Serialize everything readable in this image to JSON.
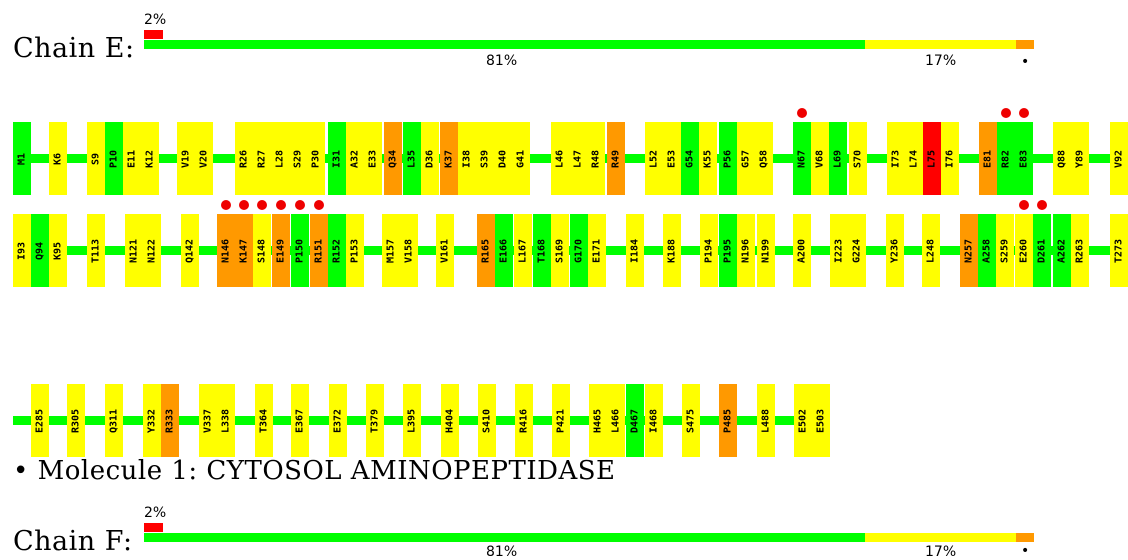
{
  "chain_e": {
    "label": "Chain E:",
    "top_pct": "2%",
    "pct_green": "81%",
    "pct_yellow": "17%",
    "dot": "•",
    "fractions": {
      "red": 0.02,
      "green": 0.81,
      "yellow": 0.17,
      "orange": 0.02
    }
  },
  "chain_f": {
    "label": "Chain F:",
    "top_pct": "2%",
    "pct_green": "81%",
    "pct_yellow": "17%",
    "dot": "•"
  },
  "molecule": {
    "text": "• Molecule 1: CYTOSOL AMINOPEPTIDASE"
  },
  "colors": {
    "green": "#00ff00",
    "yellow": "#ffff00",
    "orange": "#ff9900",
    "red": "#ff0000",
    "dot": "#e00000"
  },
  "rows": [
    {
      "residues": [
        {
          "label": "M1",
          "color": "green"
        },
        {
          "label": "K6",
          "color": "yellow"
        },
        {
          "label": "S9",
          "color": "yellow"
        },
        {
          "label": "P10",
          "color": "green"
        },
        {
          "label": "E11",
          "color": "yellow"
        },
        {
          "label": "K12",
          "color": "yellow"
        },
        {
          "label": "V19",
          "color": "yellow"
        },
        {
          "label": "V20",
          "color": "yellow"
        },
        {
          "label": "R26",
          "color": "yellow"
        },
        {
          "label": "R27",
          "color": "yellow"
        },
        {
          "label": "L28",
          "color": "yellow"
        },
        {
          "label": "S29",
          "color": "yellow"
        },
        {
          "label": "P30",
          "color": "yellow"
        },
        {
          "label": "I31",
          "color": "green"
        },
        {
          "label": "A32",
          "color": "yellow"
        },
        {
          "label": "E33",
          "color": "yellow"
        },
        {
          "label": "Q34",
          "color": "orange"
        },
        {
          "label": "L35",
          "color": "green"
        },
        {
          "label": "D36",
          "color": "yellow"
        },
        {
          "label": "K37",
          "color": "orange"
        },
        {
          "label": "I38",
          "color": "yellow"
        },
        {
          "label": "S39",
          "color": "yellow"
        },
        {
          "label": "D40",
          "color": "yellow"
        },
        {
          "label": "G41",
          "color": "yellow"
        },
        {
          "label": "L46",
          "color": "yellow"
        },
        {
          "label": "L47",
          "color": "yellow"
        },
        {
          "label": "R48",
          "color": "yellow"
        },
        {
          "label": "R49",
          "color": "orange"
        },
        {
          "label": "L52",
          "color": "yellow"
        },
        {
          "label": "E53",
          "color": "yellow"
        },
        {
          "label": "G54",
          "color": "green"
        },
        {
          "label": "K55",
          "color": "yellow"
        },
        {
          "label": "P56",
          "color": "green"
        },
        {
          "label": "G57",
          "color": "yellow"
        },
        {
          "label": "Q58",
          "color": "yellow"
        },
        {
          "label": "N67",
          "color": "green",
          "dot": true
        },
        {
          "label": "V68",
          "color": "yellow"
        },
        {
          "label": "L69",
          "color": "green"
        },
        {
          "label": "S70",
          "color": "yellow"
        },
        {
          "label": "I73",
          "color": "yellow"
        },
        {
          "label": "L74",
          "color": "yellow"
        },
        {
          "label": "L75",
          "color": "red"
        },
        {
          "label": "I76",
          "color": "yellow"
        },
        {
          "label": "E81",
          "color": "orange"
        },
        {
          "label": "R82",
          "color": "green",
          "dot": true
        },
        {
          "label": "E83",
          "color": "green",
          "dot": true
        },
        {
          "label": "Q88",
          "color": "yellow"
        },
        {
          "label": "Y89",
          "color": "yellow"
        },
        {
          "label": "V92",
          "color": "yellow"
        }
      ]
    },
    {
      "residues": [
        {
          "label": "I93",
          "color": "yellow"
        },
        {
          "label": "Q94",
          "color": "green"
        },
        {
          "label": "K95",
          "color": "yellow"
        },
        {
          "label": "T113",
          "color": "yellow"
        },
        {
          "label": "N121",
          "color": "yellow"
        },
        {
          "label": "N122",
          "color": "yellow"
        },
        {
          "label": "Q142",
          "color": "yellow"
        },
        {
          "label": "N146",
          "color": "orange",
          "dot": true
        },
        {
          "label": "K147",
          "color": "orange",
          "dot": true
        },
        {
          "label": "S148",
          "color": "yellow",
          "dot": true
        },
        {
          "label": "E149",
          "color": "orange",
          "dot": true
        },
        {
          "label": "P150",
          "color": "green",
          "dot": true
        },
        {
          "label": "R151",
          "color": "orange",
          "dot": true
        },
        {
          "label": "R152",
          "color": "green"
        },
        {
          "label": "P153",
          "color": "yellow"
        },
        {
          "label": "M157",
          "color": "yellow"
        },
        {
          "label": "V158",
          "color": "yellow"
        },
        {
          "label": "V161",
          "color": "yellow"
        },
        {
          "label": "R165",
          "color": "orange"
        },
        {
          "label": "E166",
          "color": "green"
        },
        {
          "label": "L167",
          "color": "yellow"
        },
        {
          "label": "T168",
          "color": "green"
        },
        {
          "label": "S169",
          "color": "yellow"
        },
        {
          "label": "G170",
          "color": "green"
        },
        {
          "label": "E171",
          "color": "yellow"
        },
        {
          "label": "I184",
          "color": "yellow"
        },
        {
          "label": "K188",
          "color": "yellow"
        },
        {
          "label": "P194",
          "color": "yellow"
        },
        {
          "label": "P195",
          "color": "green"
        },
        {
          "label": "N196",
          "color": "yellow"
        },
        {
          "label": "N199",
          "color": "yellow"
        },
        {
          "label": "A200",
          "color": "yellow"
        },
        {
          "label": "I223",
          "color": "yellow"
        },
        {
          "label": "G224",
          "color": "yellow"
        },
        {
          "label": "Y236",
          "color": "yellow"
        },
        {
          "label": "L248",
          "color": "yellow"
        },
        {
          "label": "N257",
          "color": "orange"
        },
        {
          "label": "A258",
          "color": "green"
        },
        {
          "label": "S259",
          "color": "yellow"
        },
        {
          "label": "E260",
          "color": "yellow",
          "dot": true
        },
        {
          "label": "D261",
          "color": "green",
          "dot": true
        },
        {
          "label": "A262",
          "color": "green"
        },
        {
          "label": "R263",
          "color": "yellow"
        },
        {
          "label": "T273",
          "color": "yellow"
        }
      ]
    },
    {
      "residues": [
        {
          "label": "E285",
          "color": "yellow"
        },
        {
          "label": "R305",
          "color": "yellow"
        },
        {
          "label": "Q311",
          "color": "yellow"
        },
        {
          "label": "Y332",
          "color": "yellow"
        },
        {
          "label": "R333",
          "color": "orange"
        },
        {
          "label": "V337",
          "color": "yellow"
        },
        {
          "label": "L338",
          "color": "yellow"
        },
        {
          "label": "T364",
          "color": "yellow"
        },
        {
          "label": "E367",
          "color": "yellow"
        },
        {
          "label": "E372",
          "color": "yellow"
        },
        {
          "label": "T379",
          "color": "yellow"
        },
        {
          "label": "L395",
          "color": "yellow"
        },
        {
          "label": "H404",
          "color": "yellow"
        },
        {
          "label": "S410",
          "color": "yellow"
        },
        {
          "label": "R416",
          "color": "yellow"
        },
        {
          "label": "P421",
          "color": "yellow"
        },
        {
          "label": "H465",
          "color": "yellow"
        },
        {
          "label": "L466",
          "color": "yellow"
        },
        {
          "label": "D467",
          "color": "green"
        },
        {
          "label": "I468",
          "color": "yellow"
        },
        {
          "label": "S475",
          "color": "yellow"
        },
        {
          "label": "P485",
          "color": "orange"
        },
        {
          "label": "L488",
          "color": "yellow"
        },
        {
          "label": "E502",
          "color": "yellow"
        },
        {
          "label": "E503",
          "color": "yellow"
        }
      ]
    }
  ]
}
